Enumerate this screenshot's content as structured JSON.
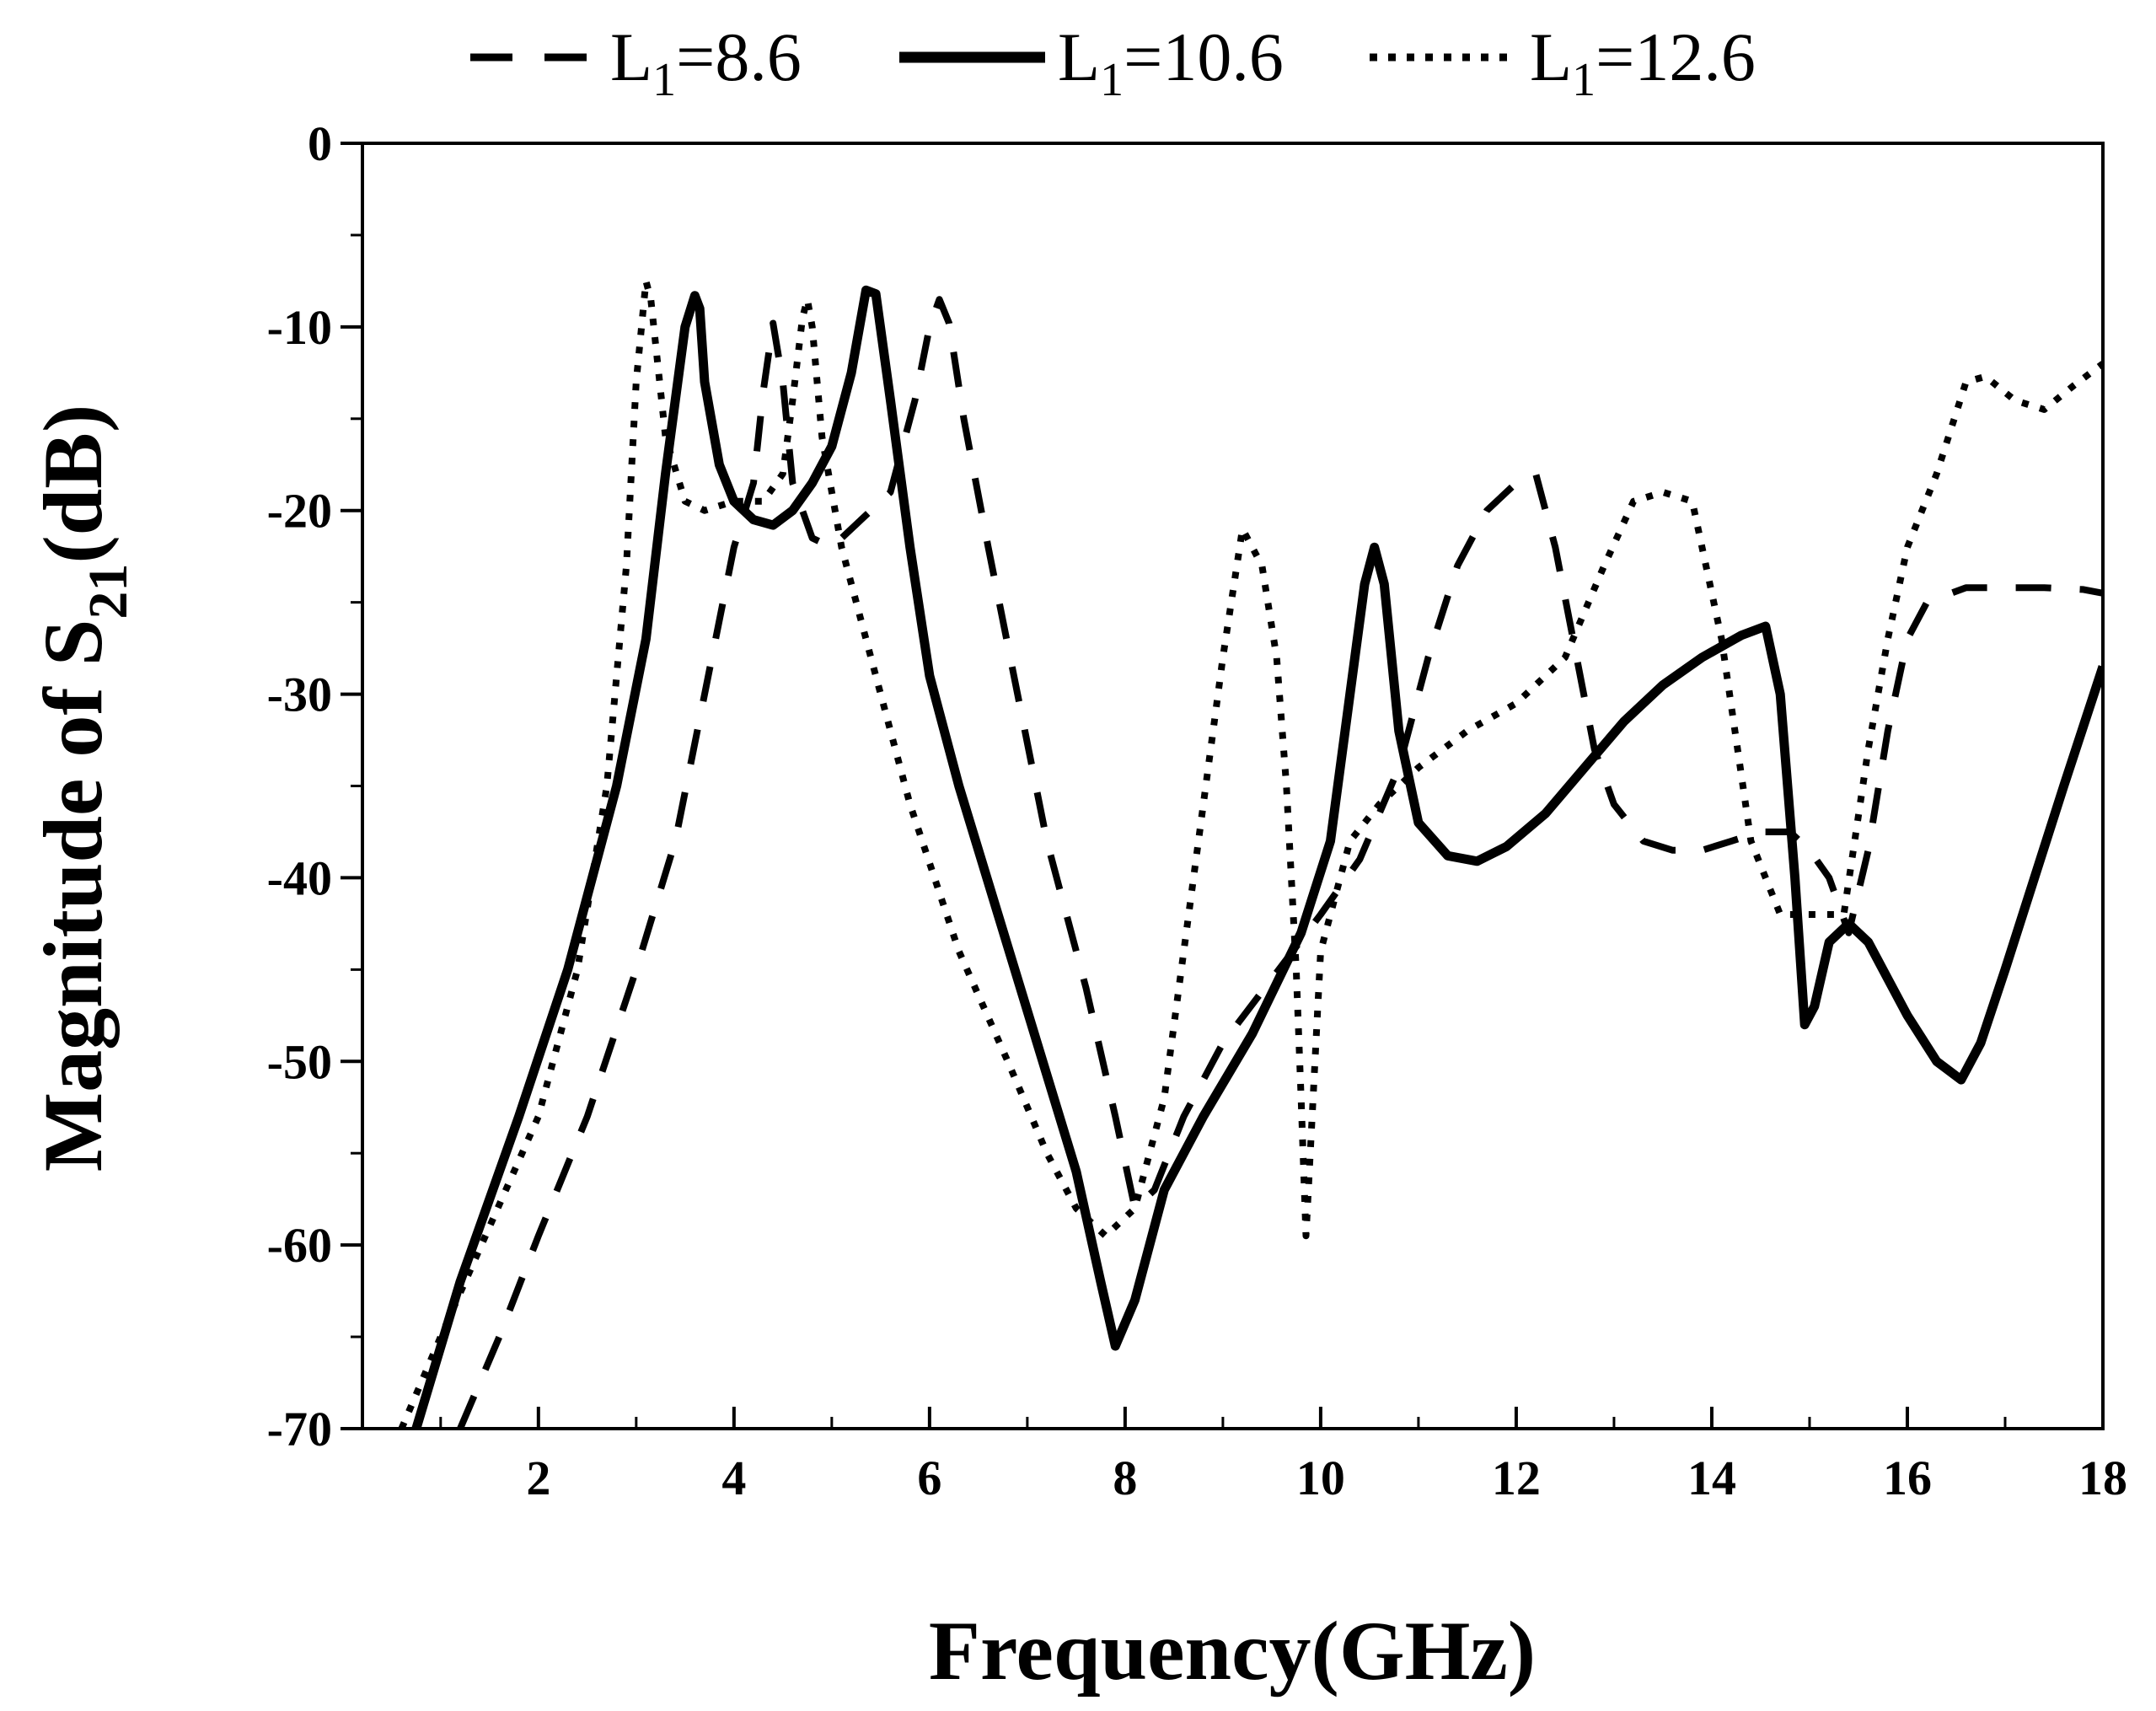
{
  "chart_data": {
    "type": "line",
    "title": "",
    "xlabel": "Frequency(GHz)",
    "ylabel_main": "Magnitude of S",
    "ylabel_sub": "21",
    "ylabel_tail": "(dB)",
    "xlim": [
      0.2,
      18
    ],
    "ylim": [
      -70,
      0
    ],
    "xticks": [
      2,
      4,
      6,
      8,
      10,
      12,
      14,
      16,
      18
    ],
    "yticks": [
      0,
      -10,
      -20,
      -30,
      -40,
      -50,
      -60,
      -70
    ],
    "legend_position": "top-center",
    "series": [
      {
        "name": "L1=8.6",
        "label_main": "L",
        "label_sub": "1",
        "label_tail": "=8.6",
        "style": "dashed",
        "x": [
          1.2,
          1.6,
          2.0,
          2.5,
          3.0,
          3.4,
          3.7,
          4.0,
          4.2,
          4.3,
          4.4,
          4.5,
          4.6,
          4.8,
          5.0,
          5.3,
          5.6,
          5.85,
          6.0,
          6.1,
          6.2,
          6.35,
          6.6,
          6.9,
          7.2,
          7.6,
          7.9,
          8.1,
          8.3,
          8.6,
          9.0,
          9.5,
          10.0,
          10.4,
          10.8,
          11.1,
          11.4,
          11.7,
          12.0,
          12.2,
          12.4,
          12.6,
          12.8,
          13.0,
          13.3,
          13.6,
          13.9,
          14.2,
          14.5,
          14.8,
          15.0,
          15.2,
          15.4,
          15.6,
          15.8,
          16.0,
          16.2,
          16.6,
          17.0,
          17.4,
          17.8,
          18.0
        ],
        "values": [
          -70,
          -65,
          -59.5,
          -53,
          -45,
          -38,
          -30,
          -22,
          -18.5,
          -13.5,
          -9.8,
          -13,
          -18.5,
          -21.5,
          -22,
          -20.5,
          -19,
          -14,
          -10,
          -8.5,
          -9.8,
          -15,
          -22,
          -30,
          -38,
          -46,
          -53,
          -58,
          -57,
          -53,
          -49,
          -45.5,
          -42,
          -39,
          -34,
          -28,
          -23,
          -20,
          -18.5,
          -18,
          -22,
          -27.5,
          -33,
          -36,
          -38,
          -38.5,
          -38.5,
          -38,
          -37.5,
          -37.5,
          -38.5,
          -40,
          -43,
          -38.5,
          -32,
          -27,
          -25,
          -24.2,
          -24.2,
          -24.2,
          -24.3,
          -24.5
        ]
      },
      {
        "name": "L1=10.6",
        "label_main": "L",
        "label_sub": "1",
        "label_tail": "=10.6",
        "style": "solid",
        "x": [
          0.75,
          1.2,
          1.8,
          2.3,
          2.8,
          3.1,
          3.3,
          3.5,
          3.6,
          3.65,
          3.7,
          3.85,
          4.0,
          4.2,
          4.4,
          4.6,
          4.8,
          5.0,
          5.2,
          5.35,
          5.45,
          5.6,
          5.8,
          6.0,
          6.3,
          6.7,
          7.1,
          7.5,
          7.75,
          7.9,
          8.1,
          8.4,
          8.8,
          9.3,
          9.8,
          10.1,
          10.3,
          10.45,
          10.55,
          10.65,
          10.8,
          11.0,
          11.3,
          11.6,
          11.9,
          12.3,
          12.7,
          13.1,
          13.5,
          13.9,
          14.3,
          14.55,
          14.7,
          14.85,
          14.95,
          15.05,
          15.2,
          15.4,
          15.6,
          15.8,
          16.0,
          16.3,
          16.55,
          16.75,
          17.0,
          17.3,
          17.6,
          18.0
        ],
        "values": [
          -70,
          -62,
          -53,
          -45,
          -35,
          -27,
          -18,
          -10,
          -8.3,
          -9,
          -13,
          -17.5,
          -19.5,
          -20.5,
          -20.8,
          -20,
          -18.5,
          -16.5,
          -12.5,
          -8,
          -8.2,
          -14,
          -22,
          -29,
          -35,
          -42,
          -49,
          -56,
          -62,
          -65.5,
          -63,
          -57,
          -53,
          -48.5,
          -43,
          -38,
          -30,
          -24,
          -22,
          -24,
          -32,
          -37,
          -38.8,
          -39.1,
          -38.3,
          -36.5,
          -34,
          -31.5,
          -29.5,
          -28,
          -26.8,
          -26.3,
          -30,
          -40,
          -48,
          -47,
          -43.5,
          -42.5,
          -43.5,
          -45.5,
          -47.5,
          -50,
          -51,
          -49,
          -45,
          -40,
          -35,
          -28.5
        ]
      },
      {
        "name": "L1=12.6",
        "label_main": "L",
        "label_sub": "1",
        "label_tail": "=12.6",
        "style": "dotted",
        "x": [
          0.6,
          1.0,
          1.5,
          2.0,
          2.4,
          2.7,
          2.9,
          3.0,
          3.1,
          3.15,
          3.3,
          3.5,
          3.7,
          4.0,
          4.3,
          4.5,
          4.6,
          4.7,
          4.75,
          4.8,
          4.9,
          5.1,
          5.4,
          5.8,
          6.3,
          6.8,
          7.2,
          7.5,
          7.8,
          8.1,
          8.4,
          8.7,
          9.0,
          9.2,
          9.4,
          9.55,
          9.65,
          9.75,
          9.8,
          9.85,
          10.0,
          10.3,
          10.6,
          11.0,
          11.5,
          12.0,
          12.5,
          12.9,
          13.2,
          13.5,
          13.8,
          14.1,
          14.4,
          14.7,
          14.9,
          15.1,
          15.35,
          15.6,
          15.8,
          16.0,
          16.3,
          16.6,
          16.8,
          17.1,
          17.4,
          17.7,
          18.0
        ],
        "values": [
          -70,
          -65,
          -59,
          -53,
          -45,
          -35,
          -23,
          -13,
          -7.5,
          -8.5,
          -16,
          -19.5,
          -20,
          -19.5,
          -19.5,
          -18,
          -14,
          -9.5,
          -8.5,
          -10,
          -16,
          -22,
          -28,
          -36,
          -44,
          -50,
          -55,
          -58,
          -59.5,
          -58,
          -52,
          -40,
          -28,
          -21,
          -23,
          -28,
          -35,
          -45,
          -52,
          -59.5,
          -44,
          -38,
          -36,
          -34,
          -32,
          -30.5,
          -28,
          -23,
          -19.5,
          -19,
          -19.5,
          -27,
          -38,
          -42,
          -42,
          -42,
          -42,
          -33,
          -27,
          -22,
          -18,
          -13,
          -12.7,
          -14,
          -14.5,
          -13.2,
          -12
        ]
      }
    ]
  }
}
